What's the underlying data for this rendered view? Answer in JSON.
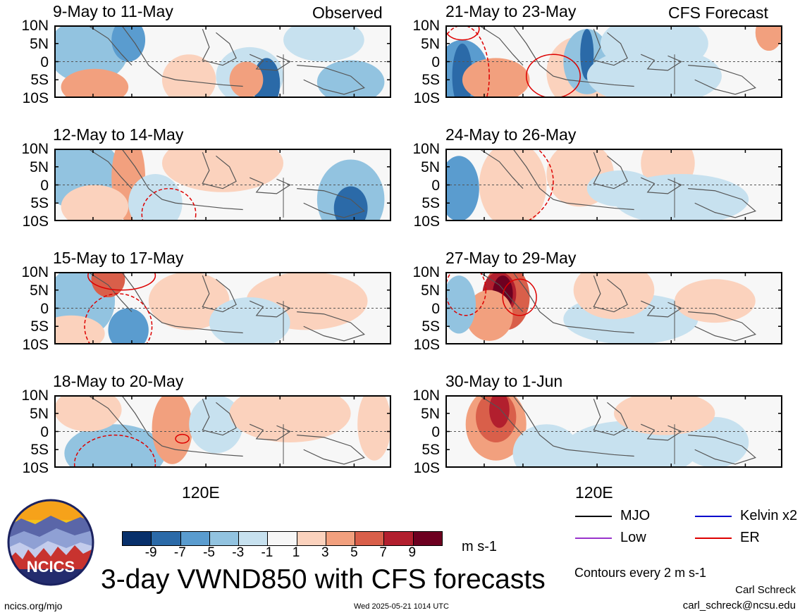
{
  "header": {
    "observed_label": "Observed",
    "forecast_label": "CFS Forecast"
  },
  "panels": [
    {
      "title": "9-May to 11-May"
    },
    {
      "title": "12-May to 14-May"
    },
    {
      "title": "15-May to 17-May"
    },
    {
      "title": "18-May to 20-May"
    },
    {
      "title": "21-May to 23-May"
    },
    {
      "title": "24-May to 26-May"
    },
    {
      "title": "27-May to 29-May"
    },
    {
      "title": "30-May to 1-Jun"
    }
  ],
  "axes": {
    "y_ticks": [
      "10N",
      "5N",
      "0",
      "5S",
      "10S"
    ],
    "x_tick": "120E"
  },
  "colorbar": {
    "colors": [
      "#08306b",
      "#2b6aa8",
      "#5a9ccf",
      "#92c3e0",
      "#c7e1ef",
      "#f7f7f7",
      "#fbd2bd",
      "#f2a07e",
      "#d95f4a",
      "#b21f2e",
      "#6d0020"
    ],
    "ticks": [
      "-9",
      "-7",
      "-5",
      "-3",
      "-1",
      "1",
      "3",
      "5",
      "7",
      "9"
    ],
    "unit": "m s-1"
  },
  "legend": {
    "items": [
      {
        "label": "MJO",
        "color": "#000000"
      },
      {
        "label": "Kelvin x2",
        "color": "#0000cc"
      },
      {
        "label": "Low",
        "color": "#9933cc"
      },
      {
        "label": "ER",
        "color": "#dd0000"
      }
    ],
    "note": "Contours every 2 m s-1"
  },
  "title": "3-day VWND850 with CFS forecasts",
  "logo_text": "NCICS",
  "footer": {
    "url": "ncics.org/mjo",
    "timestamp": "Wed 2025-05-21 1014 UTC",
    "author": "Carl Schreck",
    "email": "carl_schreck@ncsu.edu"
  },
  "chart_data": {
    "type": "heatmap",
    "variable": "VWND850",
    "units": "m s-1",
    "y_axis": [
      "10N",
      "5N",
      "0",
      "5S",
      "10S"
    ],
    "x_axis_label": "120E",
    "panels": [
      {
        "period": "9-May to 11-May",
        "source": "Observed",
        "features": [
          {
            "sign": "negative",
            "max_abs": 9,
            "near": "5S, east of 120E"
          },
          {
            "sign": "positive",
            "max_abs": 5,
            "near": "5S, 120E"
          }
        ]
      },
      {
        "period": "12-May to 14-May",
        "source": "Observed",
        "features": [
          {
            "sign": "negative",
            "max_abs": 9,
            "near": "7S, far east"
          },
          {
            "sign": "positive",
            "max_abs": 5,
            "near": "5N, west"
          }
        ]
      },
      {
        "period": "15-May to 17-May",
        "source": "Observed",
        "features": [
          {
            "sign": "negative",
            "max_abs": 7,
            "near": "7S, west"
          },
          {
            "sign": "positive",
            "max_abs": 5,
            "near": "10N, west"
          }
        ]
      },
      {
        "period": "18-May to 20-May",
        "source": "Observed",
        "features": [
          {
            "sign": "negative",
            "max_abs": 5,
            "near": "7S, west"
          },
          {
            "sign": "positive",
            "max_abs": 5,
            "near": "0, west of 120E"
          }
        ]
      },
      {
        "period": "21-May to 23-May",
        "source": "CFS Forecast",
        "features": [
          {
            "sign": "negative",
            "max_abs": 7,
            "near": "5N, east of 120E"
          },
          {
            "sign": "negative",
            "max_abs": 5,
            "near": "5S, far west"
          }
        ]
      },
      {
        "period": "24-May to 26-May",
        "source": "CFS Forecast",
        "features": [
          {
            "sign": "negative",
            "max_abs": 5,
            "near": "0, far west"
          },
          {
            "sign": "positive",
            "max_abs": 3,
            "near": "5N, 120E"
          }
        ]
      },
      {
        "period": "27-May to 29-May",
        "source": "CFS Forecast",
        "features": [
          {
            "sign": "positive",
            "max_abs": 11,
            "near": "7N, west of 120E"
          },
          {
            "sign": "negative",
            "max_abs": 3,
            "near": "5N, far west"
          }
        ]
      },
      {
        "period": "30-May to 1-Jun",
        "source": "CFS Forecast",
        "features": [
          {
            "sign": "positive",
            "max_abs": 9,
            "near": "7N, west of 120E"
          },
          {
            "sign": "negative",
            "max_abs": 3,
            "near": "5S, east"
          }
        ]
      }
    ]
  }
}
